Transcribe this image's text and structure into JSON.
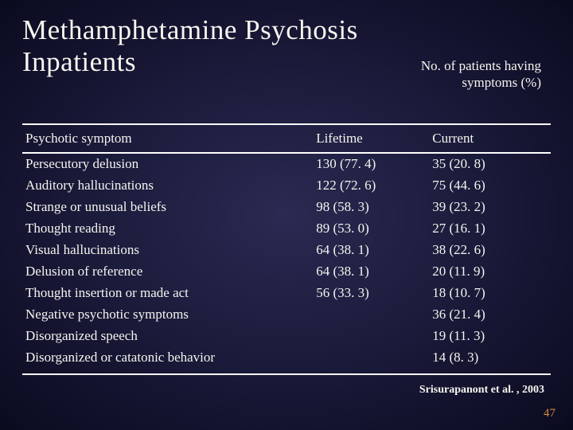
{
  "title_line1": "Methamphetamine Psychosis",
  "title_line2": "Inpatients",
  "subtitle_line1": "No. of patients having",
  "subtitle_line2": "symptoms (%)",
  "table": {
    "columns": [
      "Psychotic symptom",
      "Lifetime",
      "Current"
    ],
    "rows": [
      [
        "Persecutory delusion",
        "130 (77. 4)",
        "35 (20. 8)"
      ],
      [
        "Auditory hallucinations",
        "122 (72. 6)",
        "75 (44. 6)"
      ],
      [
        "Strange or unusual beliefs",
        "98 (58. 3)",
        "39 (23. 2)"
      ],
      [
        "Thought reading",
        "89 (53. 0)",
        "27 (16. 1)"
      ],
      [
        "Visual hallucinations",
        "64 (38. 1)",
        "38 (22. 6)"
      ],
      [
        "Delusion of reference",
        "64 (38. 1)",
        "20 (11. 9)"
      ],
      [
        "Thought insertion or made act",
        "56 (33. 3)",
        "18 (10. 7)"
      ],
      [
        "Negative psychotic symptoms",
        "",
        "36 (21. 4)"
      ],
      [
        "Disorganized speech",
        "",
        "19 (11. 3)"
      ],
      [
        "Disorganized or catatonic behavior",
        "",
        "14 (8. 3)"
      ]
    ]
  },
  "citation": "Srisurapanont et al. , 2003",
  "page_number": "47",
  "colors": {
    "text": "#f5f5f0",
    "accent": "#d98a3a",
    "bg_center": "#2a2a52",
    "bg_edge": "#0a0a1f"
  }
}
